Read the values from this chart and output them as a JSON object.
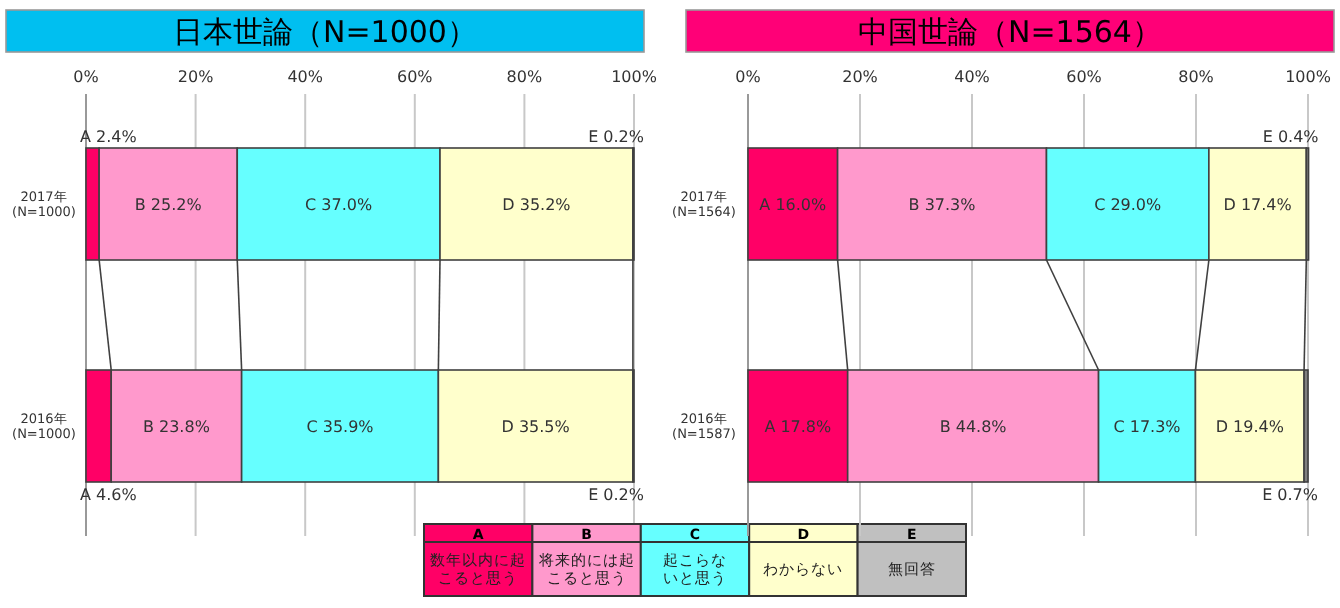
{
  "chart_data": [
    {
      "type": "bar",
      "orientation": "horizontal",
      "stacked": true,
      "title": "日本世論（N=1000）",
      "categories": [
        "2017年\n(N=1000)",
        "2016年\n(N=1000)"
      ],
      "series": [
        {
          "name": "A",
          "color": "#ff0066",
          "values": [
            2.4,
            4.6
          ],
          "value_labels": [
            "A 2.4%",
            "A 4.6%"
          ]
        },
        {
          "name": "B",
          "color": "#ff99cc",
          "values": [
            25.2,
            23.8
          ],
          "value_labels": [
            "B 25.2%",
            "B 23.8%"
          ]
        },
        {
          "name": "C",
          "color": "#66ffff",
          "values": [
            37.0,
            35.9
          ],
          "value_labels": [
            "C 37.0%",
            "C 35.9%"
          ]
        },
        {
          "name": "D",
          "color": "#ffffcc",
          "values": [
            35.2,
            35.5
          ],
          "value_labels": [
            "D 35.2%",
            "D 35.5%"
          ]
        },
        {
          "name": "E",
          "color": "#808080",
          "values": [
            0.2,
            0.2
          ],
          "value_labels": [
            "E 0.2%",
            "E 0.2%"
          ]
        }
      ],
      "annotations": [
        "数年以内に起こると思う",
        "将来的には起こると思う",
        "起こらないと思う",
        "わからない",
        "無回答"
      ],
      "xlim": [
        0,
        100
      ],
      "xticks": [
        {
          "value": 0,
          "label": "0%"
        },
        {
          "value": 20,
          "label": "20%"
        },
        {
          "value": 40,
          "label": "40%"
        },
        {
          "value": 60,
          "label": "60%"
        },
        {
          "value": 80,
          "label": "80%"
        },
        {
          "value": 100,
          "label": "100%"
        }
      ],
      "grid": "x",
      "legend": "bottom"
    },
    {
      "type": "bar",
      "orientation": "horizontal",
      "stacked": true,
      "title": "中国世論（N=1564）",
      "categories": [
        "2017年\n(N=1564)",
        "2016年\n(N=1587)"
      ],
      "series": [
        {
          "color": "#ff0066",
          "values": [
            16.0,
            17.8
          ],
          "value_labels": [
            "A 16.0%",
            "A 17.8%"
          ]
        },
        {
          "color": "#ff99cc",
          "values": [
            37.3,
            44.8
          ],
          "value_labels": [
            "B 37.3%",
            "B 44.8%"
          ]
        },
        {
          "color": "#66ffff",
          "values": [
            29.0,
            17.3
          ],
          "value_labels": [
            "C 29.0%",
            "C 17.3%"
          ]
        },
        {
          "color": "#ffffcc",
          "values": [
            17.4,
            19.4
          ],
          "value_labels": [
            "D 17.4%",
            "D 19.4%"
          ]
        },
        {
          "color": "#808080",
          "values": [
            0.4,
            0.7
          ],
          "value_labels": [
            "E 0.4%",
            "E 0.7%"
          ]
        }
      ],
      "xlim": [
        0,
        100
      ],
      "xticks": [
        {
          "value": 0,
          "label": "0%"
        },
        {
          "value": 20,
          "label": "20%"
        },
        {
          "value": 40,
          "label": "40%"
        },
        {
          "value": 60,
          "label": "60%"
        },
        {
          "value": 80,
          "label": "80%"
        },
        {
          "value": 100,
          "label": "100%"
        }
      ],
      "grid": "x"
    }
  ]
}
